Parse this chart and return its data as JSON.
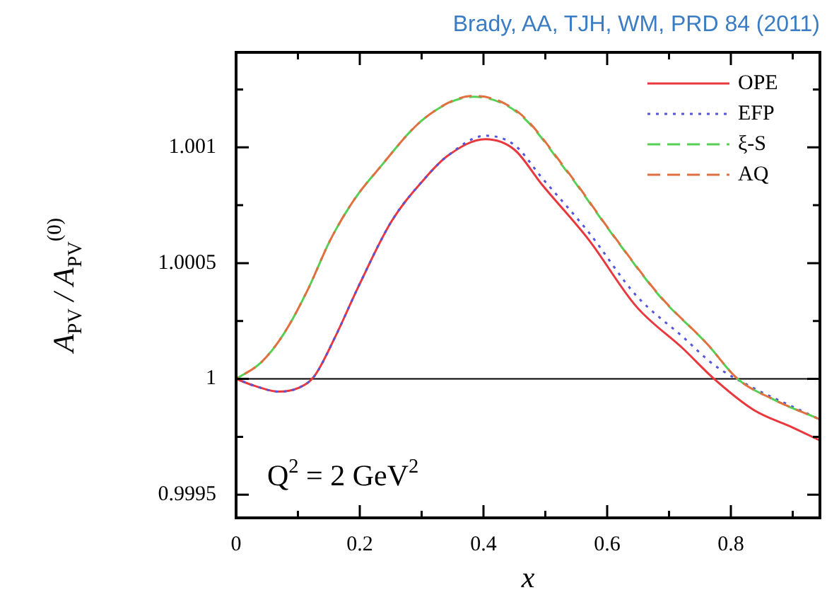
{
  "chart_data": {
    "type": "line",
    "annotations": [
      "Brady, AA, TJH, WM, PRD 84 (2011)",
      "Q$^{2}$ = 2 GeV$^{2}$"
    ],
    "xlabel": "x",
    "ylabel": "A$_{PV}$ / A$_{PV}$$^{(0)}$",
    "xlim": [
      0,
      0.944
    ],
    "ylim": [
      0.9994,
      1.00141
    ],
    "xticks": [
      0,
      {
        "value": 0.1,
        "label": null
      },
      0.2,
      {
        "value": 0.3,
        "label": null
      },
      0.4,
      {
        "value": 0.5,
        "label": null
      },
      0.6,
      {
        "value": 0.7,
        "label": null
      },
      0.8,
      {
        "value": 0.9,
        "label": null
      }
    ],
    "yticks": [
      0.9995,
      {
        "value": 0.99975,
        "label": null
      },
      1,
      {
        "value": 1.00025,
        "label": null
      },
      1.0005,
      {
        "value": 1.00075,
        "label": null
      },
      1.001,
      {
        "value": 1.00125,
        "label": null
      }
    ],
    "grid": false,
    "legend": "top right",
    "marker": "none",
    "ref_lines": [
      {
        "axis": "y",
        "value": 1,
        "color": "#000000",
        "line_style": "solid"
      }
    ],
    "x": [
      0,
      0.03,
      0.069,
      0.1,
      0.126,
      0.16,
      0.197,
      0.251,
      0.304,
      0.342,
      0.403,
      0.45,
      0.494,
      0.571,
      0.647,
      0.723,
      0.773,
      0.837,
      0.9,
      0.944
    ],
    "series": [
      {
        "name": "OPE",
        "color": "#e8383d",
        "line_style": "solid",
        "values": [
          1,
          0.99997,
          0.999945,
          0.99996,
          1.00001,
          1.00018,
          1.000394,
          1.000679,
          1.000862,
          1.000963,
          1.001035,
          1.00099,
          1.000841,
          1.000598,
          1.000313,
          1.00013,
          1.0,
          0.999866,
          0.99979,
          0.999734
        ]
      },
      {
        "name": "EFP",
        "color": "#5555dd",
        "line_style": "dotted",
        "values": [
          1,
          0.99997,
          0.999945,
          0.99996,
          1.00001,
          1.00018,
          1.000394,
          1.000679,
          1.000862,
          1.000963,
          1.00105,
          1.00101,
          1.00087,
          1.00063,
          1.00036,
          1.00018,
          1.00006,
          0.99996,
          0.99988,
          0.999825
        ]
      },
      {
        "name": "ξ-S",
        "color": "#55d055",
        "line_style": "dashed",
        "x": [
          0,
          0.04,
          0.076,
          0.115,
          0.152,
          0.19,
          0.229,
          0.305,
          0.384,
          0.457,
          0.533,
          0.61,
          0.686,
          0.762,
          0.811,
          0.87,
          0.944
        ],
        "values": [
          1,
          1.00007,
          1.00019,
          1.00038,
          1.000598,
          1.00077,
          1.000902,
          1.001126,
          1.001218,
          1.001146,
          1.000902,
          1.000618,
          1.000354,
          1.00015,
          1.0,
          0.99991,
          0.999825
        ]
      },
      {
        "name": "AQ",
        "color": "#e07040",
        "line_style": "dashed",
        "x": [
          0,
          0.04,
          0.076,
          0.115,
          0.152,
          0.19,
          0.229,
          0.305,
          0.384,
          0.457,
          0.533,
          0.61,
          0.686,
          0.762,
          0.811,
          0.87,
          0.944
        ],
        "values": [
          1,
          1.00007,
          1.00019,
          1.00038,
          1.000598,
          1.00077,
          1.000902,
          1.001126,
          1.001222,
          1.00115,
          1.000906,
          1.00062,
          1.000356,
          1.00015,
          1.0,
          0.99991,
          0.999825
        ]
      }
    ]
  }
}
